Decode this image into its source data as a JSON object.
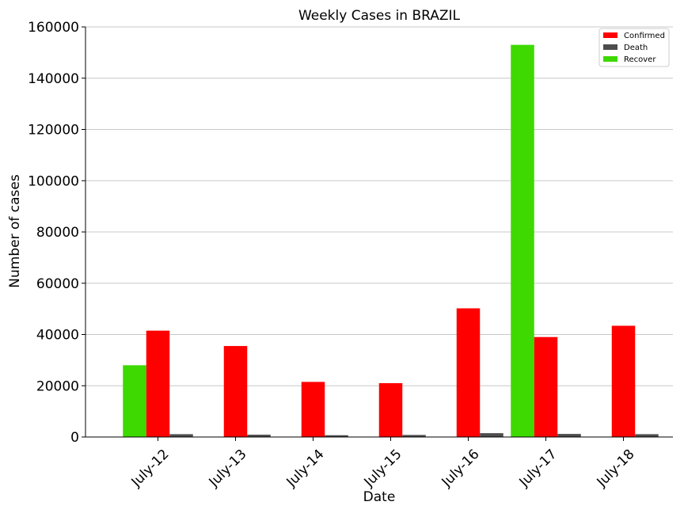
{
  "chart_data": {
    "type": "bar",
    "title": "Weekly Cases in BRAZIL",
    "xlabel": "Date",
    "ylabel": "Number of cases",
    "categories": [
      "July-12",
      "July-13",
      "July-14",
      "July-15",
      "July-16",
      "July-17",
      "July-18"
    ],
    "series": [
      {
        "name": "Recover",
        "color": "#3dd900",
        "values": [
          28000,
          null,
          null,
          null,
          null,
          153000,
          null
        ]
      },
      {
        "name": "Confirmed",
        "color": "#ff0000",
        "values": [
          41500,
          35500,
          21500,
          21000,
          50200,
          39000,
          43400
        ]
      },
      {
        "name": "Death",
        "color": "#4d4d4d",
        "values": [
          1100,
          900,
          700,
          800,
          1500,
          1200,
          1100
        ]
      }
    ],
    "legend_order": [
      "Confirmed",
      "Death",
      "Recover"
    ],
    "ylim": [
      0,
      160000
    ],
    "yticks": [
      0,
      20000,
      40000,
      60000,
      80000,
      100000,
      120000,
      140000,
      160000
    ],
    "grid": "y",
    "legend_position": "top-right"
  }
}
